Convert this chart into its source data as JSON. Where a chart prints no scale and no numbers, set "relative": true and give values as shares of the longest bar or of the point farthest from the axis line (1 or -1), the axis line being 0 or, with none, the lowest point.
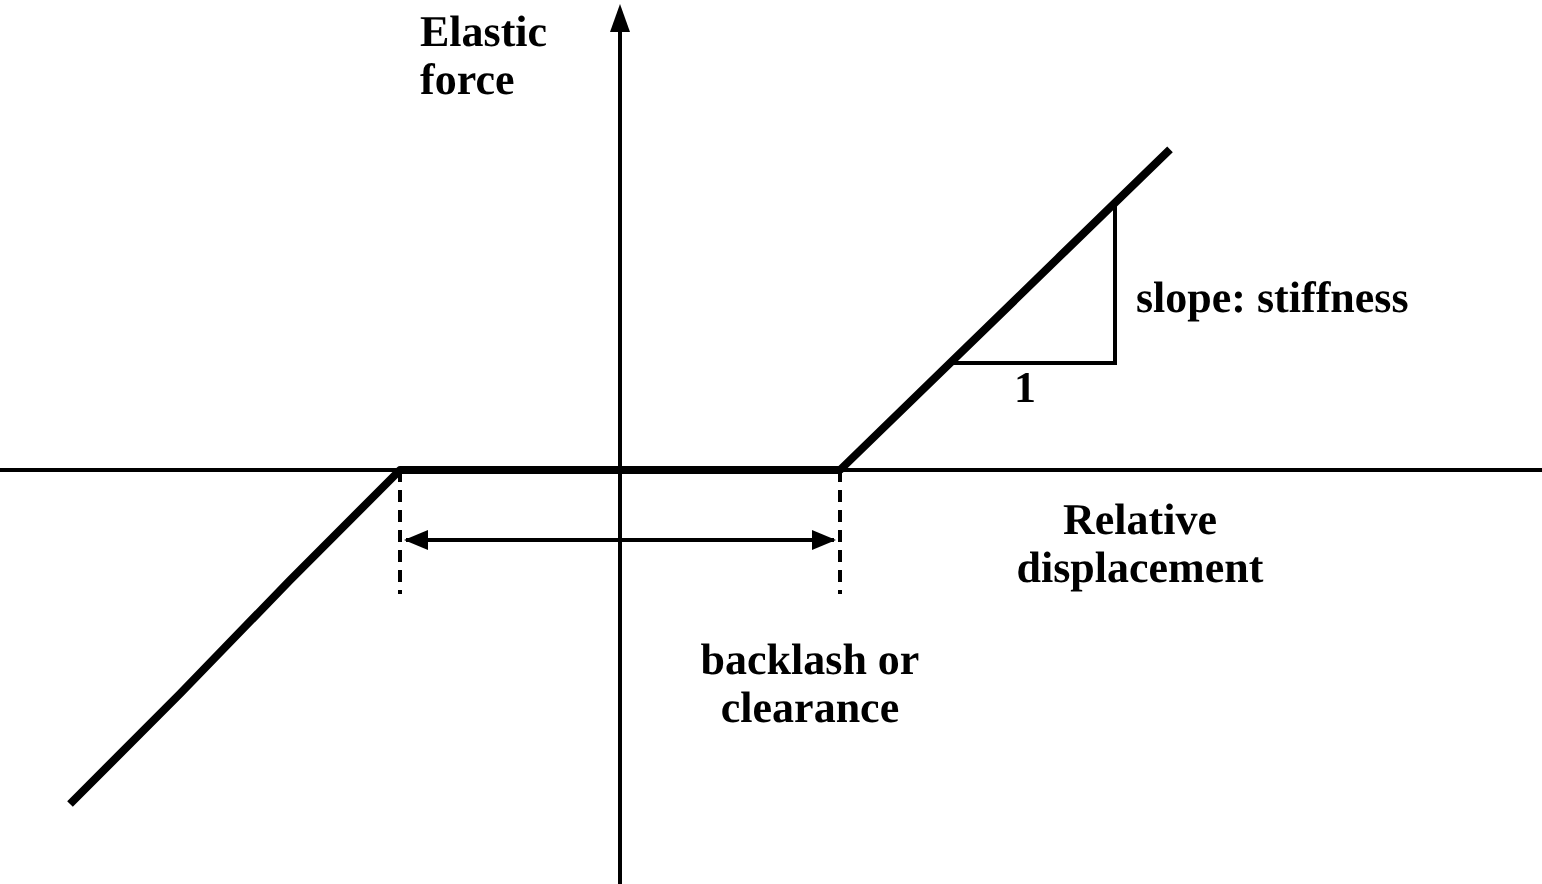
{
  "chart_data": {
    "type": "line",
    "relative": true,
    "xlabel": "Relative displacement",
    "ylabel": "Elastic force",
    "categories": [
      null,
      null,
      null,
      null,
      null,
      null,
      null,
      null,
      null,
      null,
      null
    ],
    "values": [
      -1,
      -0.67,
      -0.33,
      0,
      0,
      0,
      0,
      0,
      0.32,
      0.64,
      0.96
    ],
    "color": "#000000",
    "marker": "none",
    "legend": false,
    "annotations": [
      "slope: stiffness",
      "1",
      "backlash or clearance"
    ]
  }
}
